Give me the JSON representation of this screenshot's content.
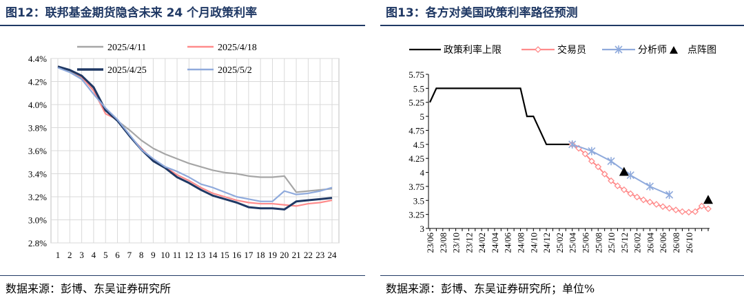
{
  "left": {
    "title": "图12：联邦基金期货隐含未来 24 个月政策利率",
    "source": "数据来源：彭博、东吴证券研究所",
    "chart_data": {
      "type": "line",
      "x": [
        1,
        2,
        3,
        4,
        5,
        6,
        7,
        8,
        9,
        10,
        11,
        12,
        13,
        14,
        15,
        16,
        17,
        18,
        19,
        20,
        21,
        22,
        23,
        24
      ],
      "x_tick_labels": [
        "1",
        "2",
        "3",
        "4",
        "5",
        "6",
        "7",
        "8",
        "9",
        "10",
        "11",
        "12",
        "13",
        "14",
        "15",
        "16",
        "17",
        "18",
        "19",
        "20",
        "21",
        "22",
        "23",
        "24"
      ],
      "ylim": [
        2.8,
        4.4
      ],
      "y_ticks": [
        "2.8%",
        "3.0%",
        "3.2%",
        "3.4%",
        "3.6%",
        "3.8%",
        "4.0%",
        "4.2%",
        "4.4%"
      ],
      "grid": true,
      "legend_position": "top",
      "series": [
        {
          "name": "2025/4/11",
          "color": "#a6a6a6",
          "values": [
            4.33,
            4.29,
            4.23,
            4.14,
            3.95,
            3.86,
            3.78,
            3.69,
            3.62,
            3.57,
            3.53,
            3.49,
            3.46,
            3.43,
            3.41,
            3.4,
            3.38,
            3.37,
            3.37,
            3.38,
            3.24,
            3.25,
            3.26,
            3.27
          ]
        },
        {
          "name": "2025/4/18",
          "color": "#ff8b8b",
          "values": [
            4.33,
            4.3,
            4.24,
            4.12,
            3.92,
            3.87,
            3.73,
            3.62,
            3.52,
            3.46,
            3.39,
            3.34,
            3.28,
            3.23,
            3.2,
            3.17,
            3.15,
            3.14,
            3.14,
            3.13,
            3.12,
            3.14,
            3.15,
            3.17
          ]
        },
        {
          "name": "2025/4/25",
          "color": "#1f3864",
          "values": [
            4.33,
            4.3,
            4.25,
            4.15,
            3.95,
            3.86,
            3.73,
            3.61,
            3.51,
            3.45,
            3.37,
            3.32,
            3.26,
            3.21,
            3.18,
            3.15,
            3.11,
            3.1,
            3.1,
            3.09,
            3.16,
            3.17,
            3.18,
            3.19
          ]
        },
        {
          "name": "2025/5/2",
          "color": "#8faadc",
          "values": [
            4.32,
            4.28,
            4.22,
            4.09,
            3.97,
            3.87,
            3.74,
            3.61,
            3.53,
            3.46,
            3.42,
            3.37,
            3.31,
            3.28,
            3.24,
            3.2,
            3.18,
            3.16,
            3.16,
            3.25,
            3.22,
            3.23,
            3.25,
            3.28
          ]
        }
      ]
    }
  },
  "right": {
    "title": "图13：各方对美国政策利率路径预测",
    "source": "数据来源：彭博、东吴证券研究所；单位%",
    "chart_data": {
      "type": "line",
      "x": [
        "23/06",
        "23/07",
        "23/08",
        "23/09",
        "23/10",
        "23/11",
        "23/12",
        "24/01",
        "24/02",
        "24/03",
        "24/04",
        "24/05",
        "24/06",
        "24/07",
        "24/08",
        "24/09",
        "24/10",
        "24/11",
        "24/12",
        "25/01",
        "25/02",
        "25/03",
        "25/04",
        "25/05",
        "25/06",
        "25/07",
        "25/08",
        "25/09",
        "25/10",
        "25/11",
        "25/12",
        "26/01",
        "26/02",
        "26/03",
        "26/04",
        "26/05",
        "26/06",
        "26/07",
        "26/08",
        "26/09",
        "26/10",
        "26/11",
        "26/12",
        "27/01"
      ],
      "x_tick_labels": [
        "23/06",
        "23/08",
        "23/10",
        "23/12",
        "24/02",
        "24/04",
        "24/06",
        "24/08",
        "24/10",
        "24/12",
        "25/02",
        "25/04",
        "25/06",
        "25/08",
        "25/10",
        "25/12",
        "26/02",
        "26/04",
        "26/06",
        "26/08",
        "26/10"
      ],
      "ylim": [
        3,
        5.75
      ],
      "y_ticks": [
        "3",
        "3.25",
        "3.5",
        "3.75",
        "4",
        "4.25",
        "4.5",
        "4.75",
        "5",
        "5.25",
        "5.5",
        "5.75"
      ],
      "grid": false,
      "legend_position": "top",
      "series": [
        {
          "name": "政策利率上限",
          "color": "#000000",
          "marker": "none",
          "points": [
            [
              "23/06",
              5.25
            ],
            [
              "23/07",
              5.5
            ],
            [
              "24/08",
              5.5
            ],
            [
              "24/09",
              5.0
            ],
            [
              "24/10",
              5.0
            ],
            [
              "24/11",
              4.75
            ],
            [
              "24/12",
              4.5
            ],
            [
              "25/04",
              4.5
            ]
          ]
        },
        {
          "name": "交易员",
          "color": "#ff8b8b",
          "marker": "diamond-open",
          "points": [
            [
              "25/04",
              4.5
            ],
            [
              "25/05",
              4.43
            ],
            [
              "25/06",
              4.33
            ],
            [
              "25/07",
              4.2
            ],
            [
              "25/08",
              4.1
            ],
            [
              "25/09",
              3.97
            ],
            [
              "25/10",
              3.85
            ],
            [
              "25/11",
              3.76
            ],
            [
              "25/12",
              3.69
            ],
            [
              "26/01",
              3.62
            ],
            [
              "26/02",
              3.56
            ],
            [
              "26/03",
              3.51
            ],
            [
              "26/04",
              3.47
            ],
            [
              "26/05",
              3.43
            ],
            [
              "26/06",
              3.39
            ],
            [
              "26/07",
              3.36
            ],
            [
              "26/08",
              3.33
            ],
            [
              "26/09",
              3.3
            ],
            [
              "26/10",
              3.29
            ],
            [
              "26/11",
              3.3
            ],
            [
              "26/12",
              3.4
            ],
            [
              "27/01",
              3.35
            ]
          ]
        },
        {
          "name": "分析师",
          "color": "#8faadc",
          "marker": "x",
          "points": [
            [
              "25/04",
              4.5
            ],
            [
              "25/07",
              4.38
            ],
            [
              "25/10",
              4.2
            ],
            [
              "26/01",
              3.95
            ],
            [
              "26/04",
              3.75
            ],
            [
              "26/07",
              3.6
            ]
          ]
        },
        {
          "name": "点阵图",
          "color": "#000000",
          "marker": "triangle",
          "points": [
            [
              "25/12",
              4.0
            ],
            [
              "27/01",
              3.5
            ]
          ]
        }
      ]
    }
  }
}
